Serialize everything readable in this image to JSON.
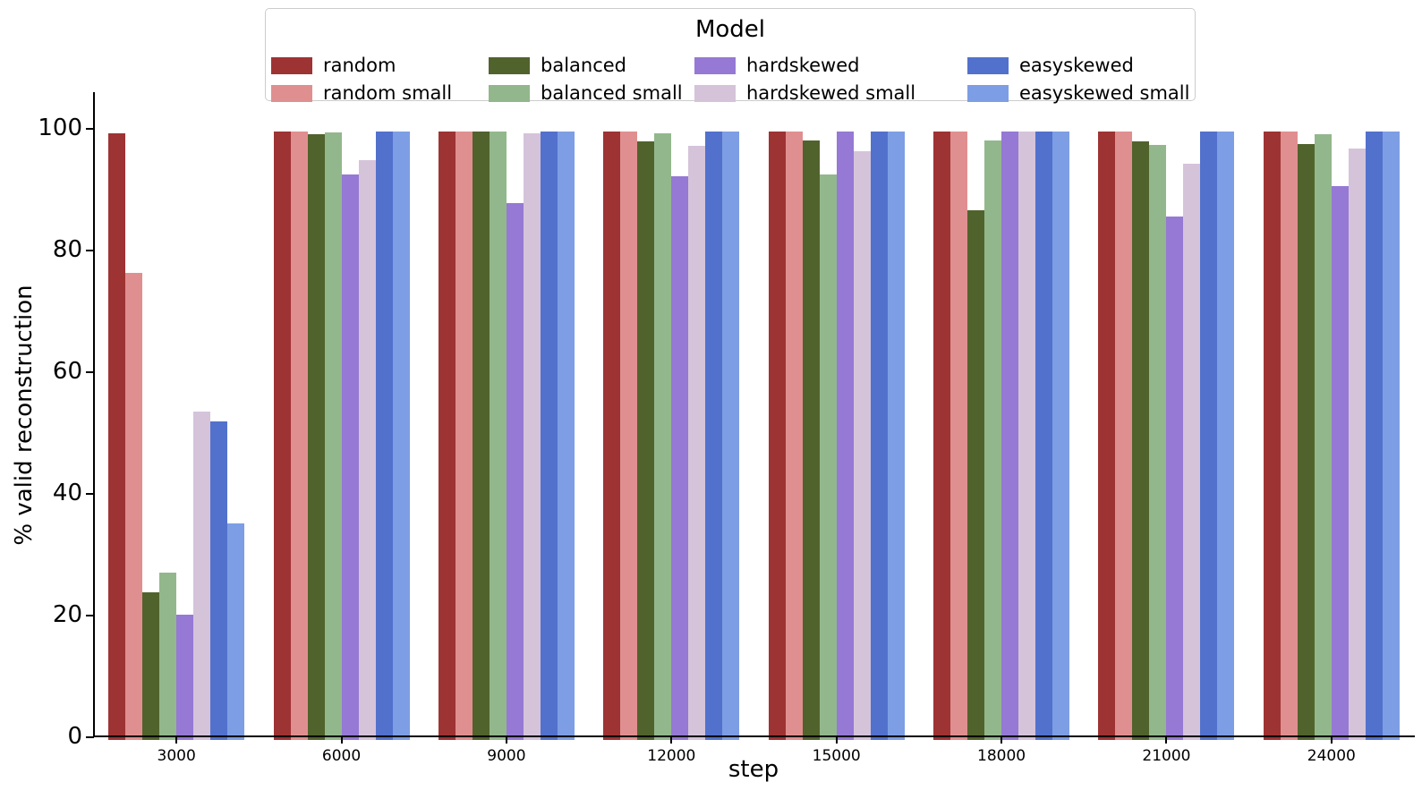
{
  "figure": {
    "legend_title": "Model",
    "xlabel": "step",
    "ylabel": "% valid reconstruction"
  },
  "chart_data": {
    "type": "bar",
    "title": "",
    "legend_title": "Model",
    "legend_position": "top-center",
    "xlabel": "step",
    "ylabel": "% valid reconstruction",
    "ylim": [
      0,
      105
    ],
    "yticks": [
      0,
      20,
      40,
      60,
      80,
      100
    ],
    "grid": false,
    "categories": [
      "3000",
      "6000",
      "9000",
      "12000",
      "15000",
      "18000",
      "21000",
      "24000"
    ],
    "series": [
      {
        "name": "random",
        "color": "#9e3334",
        "values": [
          99.7,
          100,
          100,
          100,
          100,
          100,
          100,
          100
        ]
      },
      {
        "name": "random small",
        "color": "#e08f90",
        "values": [
          76.8,
          100,
          100,
          100,
          100,
          100,
          100,
          100
        ]
      },
      {
        "name": "balanced",
        "color": "#51632d",
        "values": [
          24.2,
          99.5,
          100,
          98.4,
          98.5,
          87.0,
          98.4,
          98.0
        ]
      },
      {
        "name": "balanced small",
        "color": "#93b78c",
        "values": [
          27.5,
          99.8,
          100,
          99.7,
          93.0,
          98.5,
          97.8,
          99.5
        ]
      },
      {
        "name": "hardskewed",
        "color": "#9579d4",
        "values": [
          20.6,
          93.0,
          88.2,
          92.7,
          100,
          100,
          86.0,
          91.0
        ]
      },
      {
        "name": "hardskewed small",
        "color": "#d5c3da",
        "values": [
          53.9,
          95.3,
          99.7,
          97.7,
          96.8,
          100,
          94.7,
          97.2
        ]
      },
      {
        "name": "easyskewed",
        "color": "#5271cc",
        "values": [
          52.3,
          100,
          100,
          100,
          100,
          100,
          100,
          100
        ]
      },
      {
        "name": "easyskewed small",
        "color": "#7d9ee4",
        "values": [
          35.6,
          100,
          100,
          100,
          100,
          100,
          100,
          100
        ]
      }
    ]
  }
}
